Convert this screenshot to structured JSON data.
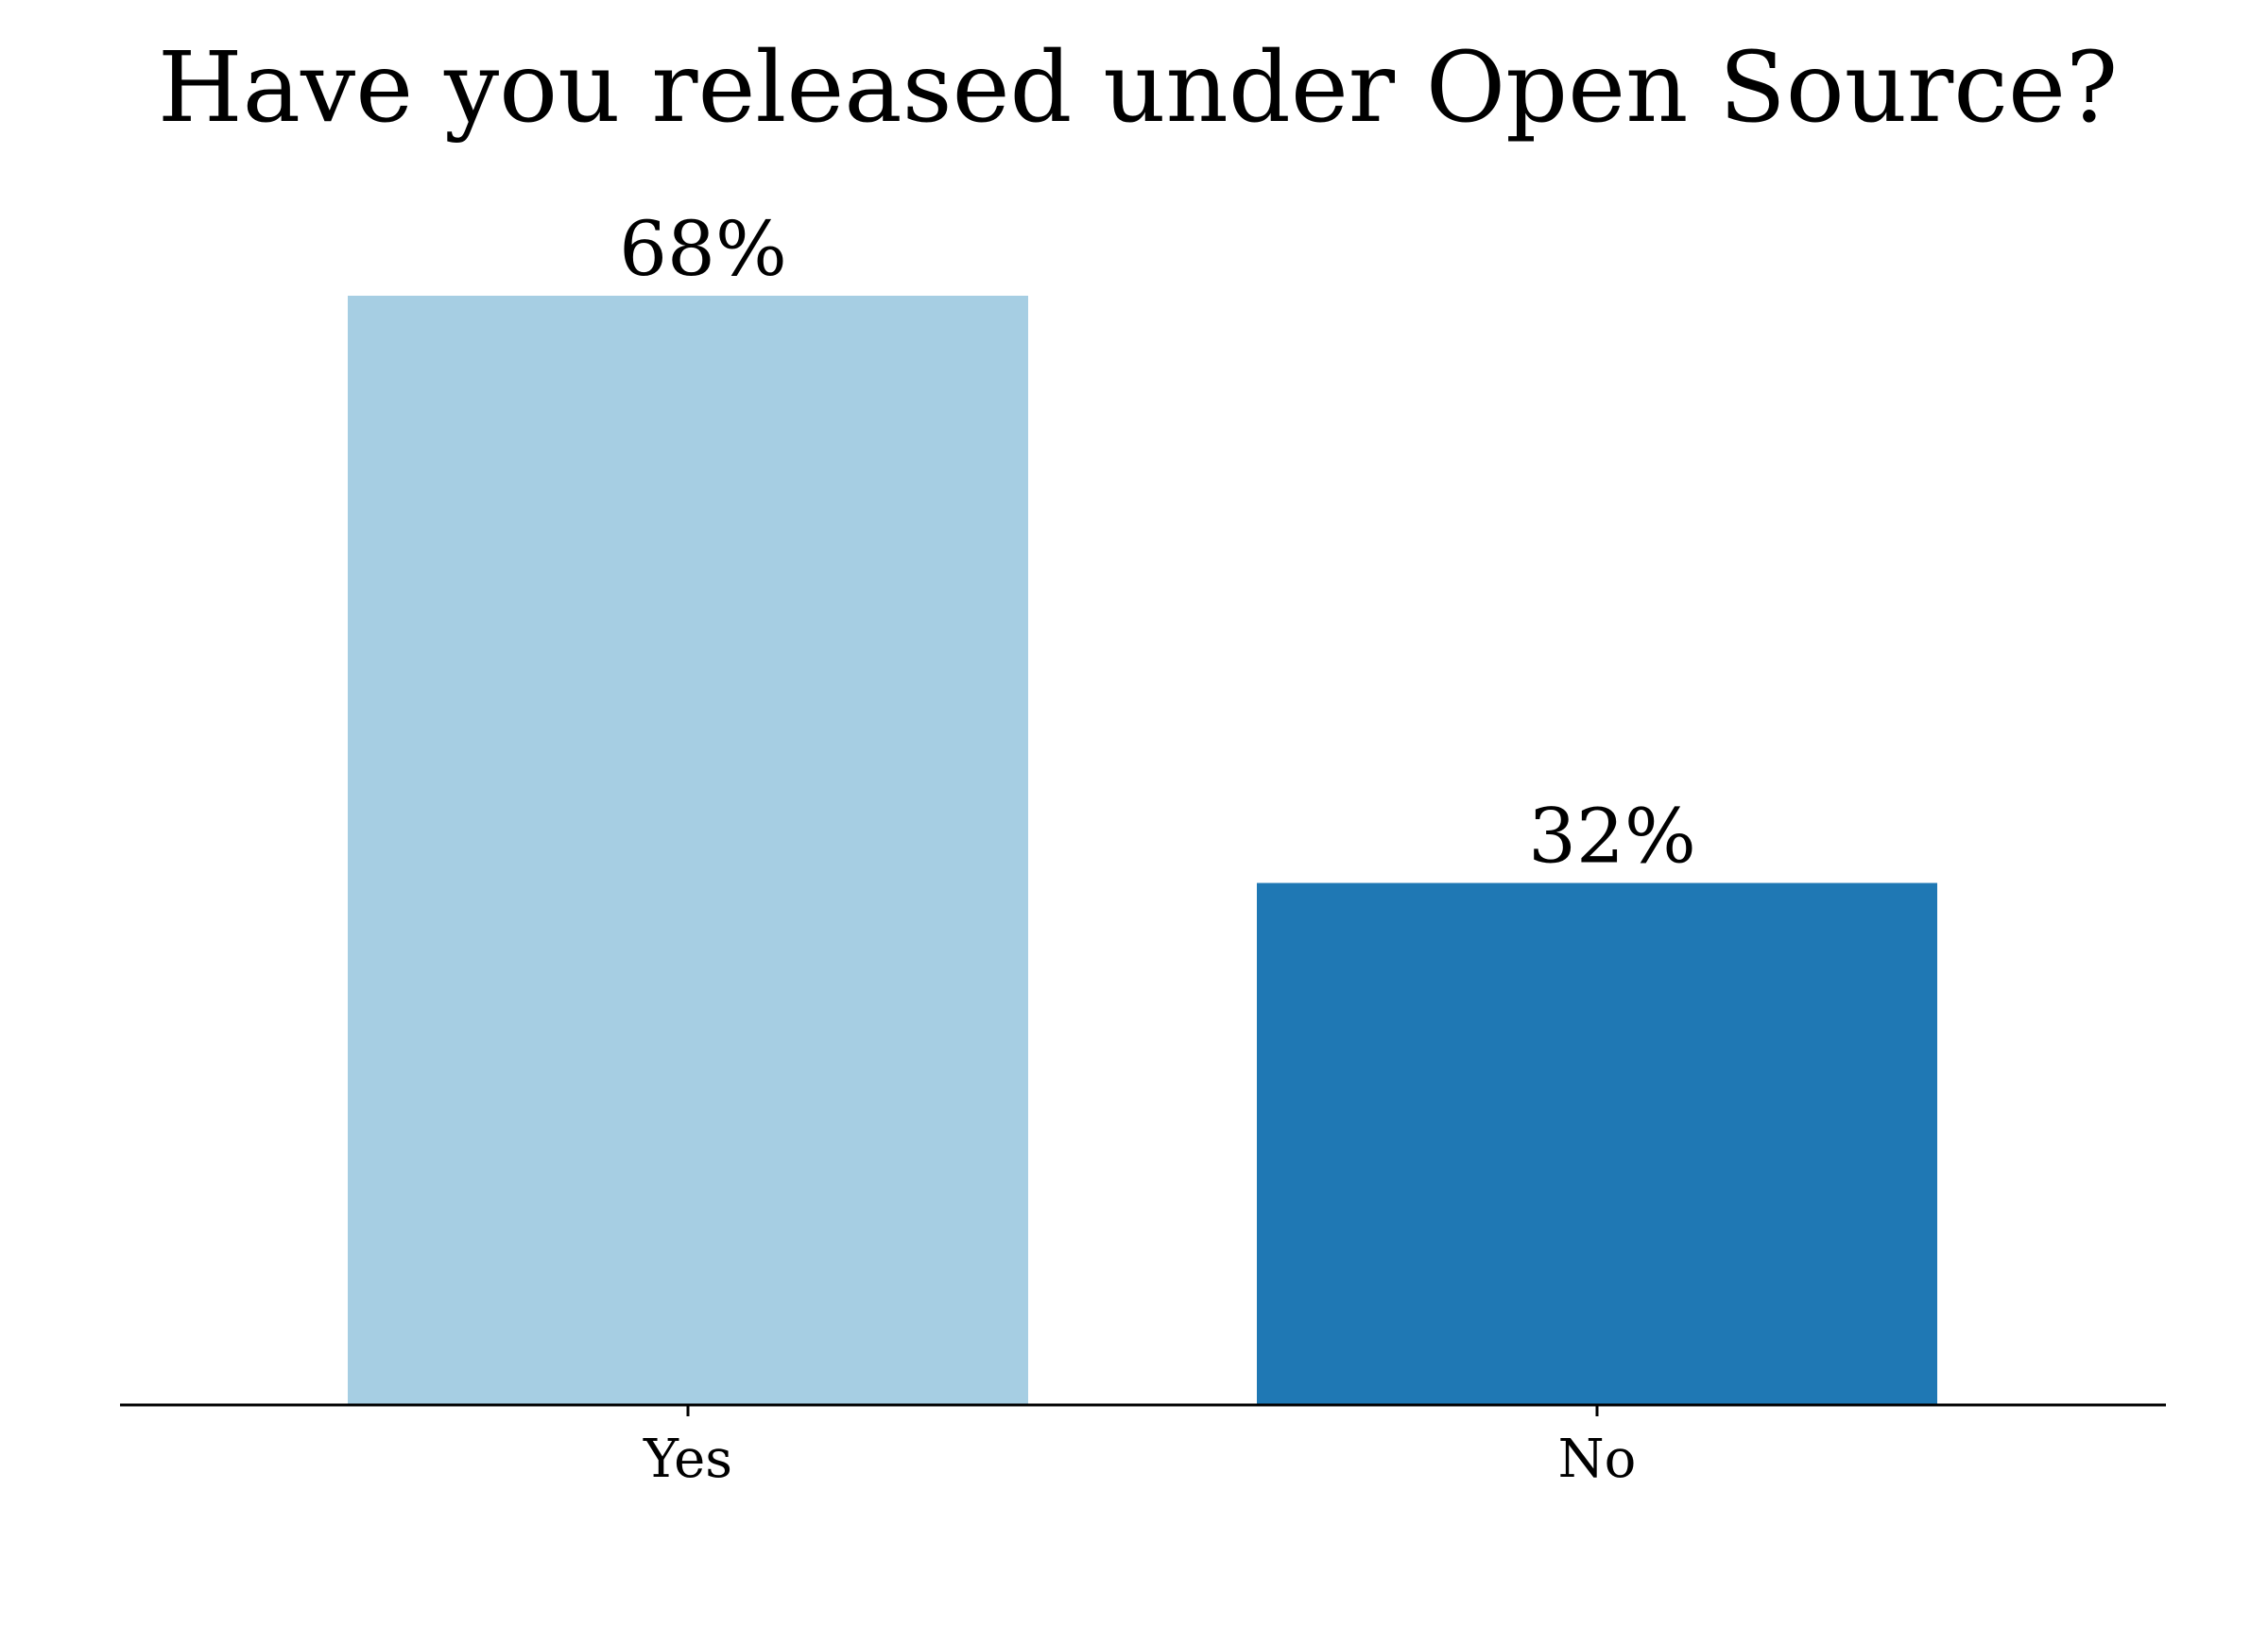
{
  "chart_data": {
    "type": "bar",
    "title": "Have you released under Open Source?",
    "xlabel": "",
    "ylabel": "",
    "categories": [
      "Yes",
      "No"
    ],
    "values": [
      68,
      32
    ],
    "value_labels": [
      "68%",
      "32%"
    ],
    "colors": [
      "#a6cee3",
      "#1f78b4"
    ],
    "ylim": [
      0,
      68
    ],
    "grid": false,
    "legend": "none"
  }
}
